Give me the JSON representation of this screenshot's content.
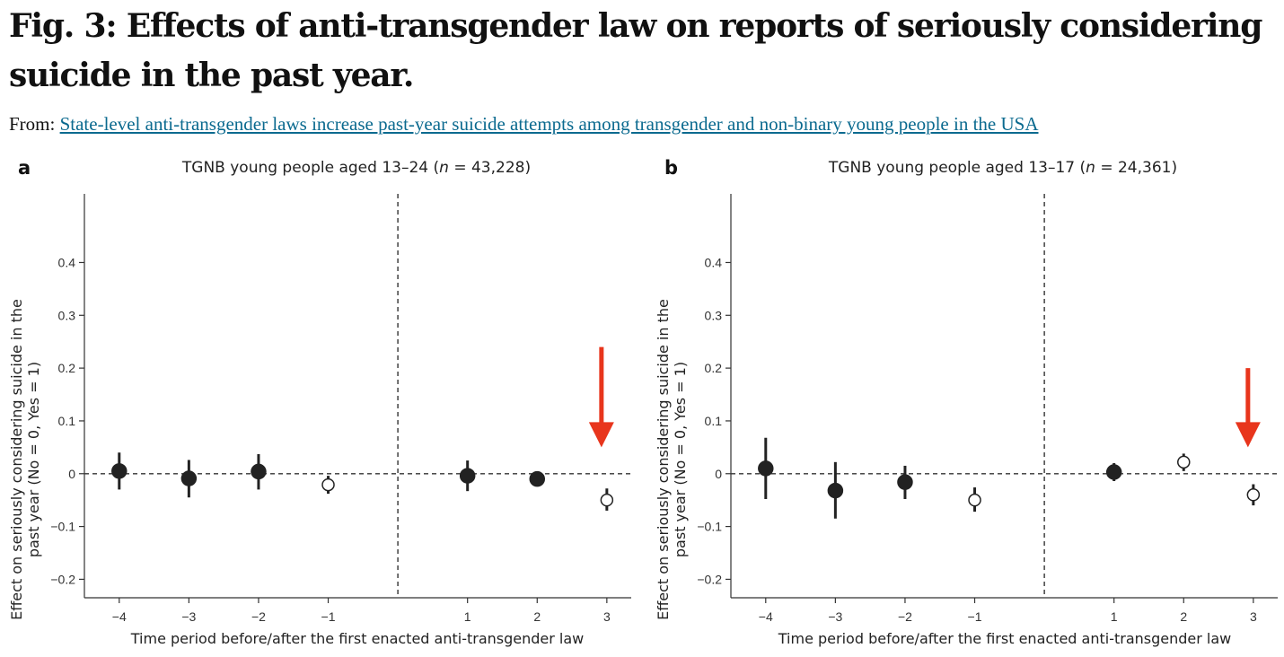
{
  "figure": {
    "title": "Fig. 3: Effects of anti-transgender law on reports of seriously considering suicide in the past year.",
    "from_label": "From:",
    "from_link": "State-level anti-transgender laws increase past-year suicide attempts among transgender and non-binary young people in the USA"
  },
  "colors": {
    "marker": "#222222",
    "arrow": "#e8351c",
    "link": "#0b6a8f"
  },
  "chart_data": [
    {
      "type": "scatter",
      "panel": "a",
      "title_prefix": "TGNB young people aged 13–24 (",
      "title_n": "n",
      "title_suffix": " = 43,228)",
      "xlabel": "Time period before/after the first enacted anti-transgender law",
      "ylabel_line1": "Effect on seriously considering suicide in the",
      "ylabel_line2": "past year (No = 0, Yes = 1)",
      "xlim": [
        -4.5,
        3.35
      ],
      "ylim": [
        -0.235,
        0.53
      ],
      "x_ticks": [
        -4,
        -3,
        -2,
        -1,
        1,
        2,
        3
      ],
      "x_tick_labels": [
        "−4",
        "−3",
        "−2",
        "−1",
        "1",
        "2",
        "3"
      ],
      "y_ticks": [
        0.4,
        0.3,
        0.2,
        0.1,
        0,
        -0.1,
        -0.2
      ],
      "y_tick_labels": [
        "0.4",
        "0.3",
        "0.2",
        "0.1",
        "0",
        "−0.1",
        "−0.2"
      ],
      "reference_vline_x": 0,
      "reference_hline_y": 0,
      "points": [
        {
          "x": -4,
          "y": 0.005,
          "low": -0.03,
          "high": 0.04,
          "filled": true
        },
        {
          "x": -3,
          "y": -0.009,
          "low": -0.045,
          "high": 0.026,
          "filled": true
        },
        {
          "x": -2,
          "y": 0.004,
          "low": -0.03,
          "high": 0.037,
          "filled": true
        },
        {
          "x": -1,
          "y": -0.021,
          "low": -0.038,
          "high": -0.004,
          "filled": false
        },
        {
          "x": 1,
          "y": -0.004,
          "low": -0.033,
          "high": 0.025,
          "filled": true
        },
        {
          "x": 2,
          "y": -0.01,
          "low": -0.02,
          "high": 0.0,
          "filled": true
        },
        {
          "x": 3,
          "y": -0.05,
          "low": -0.07,
          "high": -0.028,
          "filled": false
        }
      ],
      "arrow": {
        "x": 3,
        "y_start": 0.24,
        "y_end": 0.05
      }
    },
    {
      "type": "scatter",
      "panel": "b",
      "title_prefix": "TGNB young people aged 13–17 (",
      "title_n": "n",
      "title_suffix": " = 24,361)",
      "xlabel": "Time period before/after the first enacted anti-transgender law",
      "ylabel_line1": "Effect on seriously considering suicide in the",
      "ylabel_line2": "past year (No = 0, Yes = 1)",
      "xlim": [
        -4.5,
        3.35
      ],
      "ylim": [
        -0.235,
        0.53
      ],
      "x_ticks": [
        -4,
        -3,
        -2,
        -1,
        1,
        2,
        3
      ],
      "x_tick_labels": [
        "−4",
        "−3",
        "−2",
        "−1",
        "1",
        "2",
        "3"
      ],
      "y_ticks": [
        0.4,
        0.3,
        0.2,
        0.1,
        0,
        -0.1,
        -0.2
      ],
      "y_tick_labels": [
        "0.4",
        "0.3",
        "0.2",
        "0.1",
        "0",
        "−0.1",
        "−0.2"
      ],
      "reference_vline_x": 0,
      "reference_hline_y": 0,
      "points": [
        {
          "x": -4,
          "y": 0.01,
          "low": -0.048,
          "high": 0.068,
          "filled": true
        },
        {
          "x": -3,
          "y": -0.032,
          "low": -0.085,
          "high": 0.022,
          "filled": true
        },
        {
          "x": -2,
          "y": -0.016,
          "low": -0.048,
          "high": 0.015,
          "filled": true
        },
        {
          "x": -1,
          "y": -0.05,
          "low": -0.072,
          "high": -0.026,
          "filled": false
        },
        {
          "x": 1,
          "y": 0.003,
          "low": -0.014,
          "high": 0.02,
          "filled": true
        },
        {
          "x": 2,
          "y": 0.022,
          "low": 0.005,
          "high": 0.038,
          "filled": false
        },
        {
          "x": 3,
          "y": -0.04,
          "low": -0.06,
          "high": -0.02,
          "filled": false
        }
      ],
      "arrow": {
        "x": 3,
        "y_start": 0.2,
        "y_end": 0.05
      }
    }
  ]
}
